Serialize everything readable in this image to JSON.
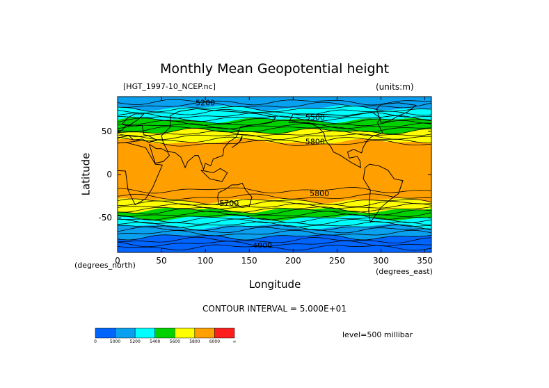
{
  "chart_data": {
    "type": "heatmap",
    "title": "Monthly Mean Geopotential height",
    "file_label": "[HGT_1997-10_NCEP.nc]",
    "units_label": "(units:m)",
    "xlabel": "Longitude",
    "ylabel": "Latitude",
    "x_units": "(degrees_east)",
    "y_units": "(degrees_north)",
    "xlim": [
      0,
      357.5
    ],
    "ylim": [
      -90,
      90
    ],
    "x_ticks": [
      "0",
      "50",
      "100",
      "150",
      "200",
      "250",
      "300",
      "350"
    ],
    "x_tick_values": [
      0,
      50,
      100,
      150,
      200,
      250,
      300,
      350
    ],
    "y_ticks": [
      "50",
      "0",
      "-50"
    ],
    "y_tick_values": [
      50,
      0,
      -50
    ],
    "contour_interval_text": "CONTOUR INTERVAL = 5.000E+01",
    "level_text": "level=500 millibar",
    "contour_labels": [
      {
        "text": "5200",
        "lon": 100,
        "lat": 80
      },
      {
        "text": "5500",
        "lon": 225,
        "lat": 63
      },
      {
        "text": "5800",
        "lon": 225,
        "lat": 35
      },
      {
        "text": "5800",
        "lon": 230,
        "lat": -25
      },
      {
        "text": "5700",
        "lon": 127,
        "lat": -36
      },
      {
        "text": "4900",
        "lon": 165,
        "lat": -85
      }
    ],
    "colorbar": {
      "labels": [
        "0",
        "5000",
        "5200",
        "5400",
        "5600",
        "5800",
        "6000",
        "∞"
      ],
      "colors": [
        "#0064ff",
        "#0aa0f0",
        "#00ffff",
        "#00d200",
        "#ffff00",
        "#ffa000",
        "#ff1e1e"
      ]
    },
    "bands": [
      {
        "lat_min": -90,
        "lat_max": -72,
        "color": "#0064ff"
      },
      {
        "lat_min": -72,
        "lat_max": -60,
        "color": "#0aa0f0"
      },
      {
        "lat_min": -60,
        "lat_max": -50,
        "color": "#00ffff"
      },
      {
        "lat_min": -50,
        "lat_max": -41,
        "color": "#00d200"
      },
      {
        "lat_min": -41,
        "lat_max": -30,
        "color": "#ffff00"
      },
      {
        "lat_min": -30,
        "lat_max": 38,
        "color": "#ffa000"
      },
      {
        "lat_min": 38,
        "lat_max": 50,
        "color": "#ffff00"
      },
      {
        "lat_min": 50,
        "lat_max": 63,
        "color": "#00d200"
      },
      {
        "lat_min": 63,
        "lat_max": 77,
        "color": "#00ffff"
      },
      {
        "lat_min": 77,
        "lat_max": 90,
        "color": "#0aa0f0"
      }
    ]
  }
}
